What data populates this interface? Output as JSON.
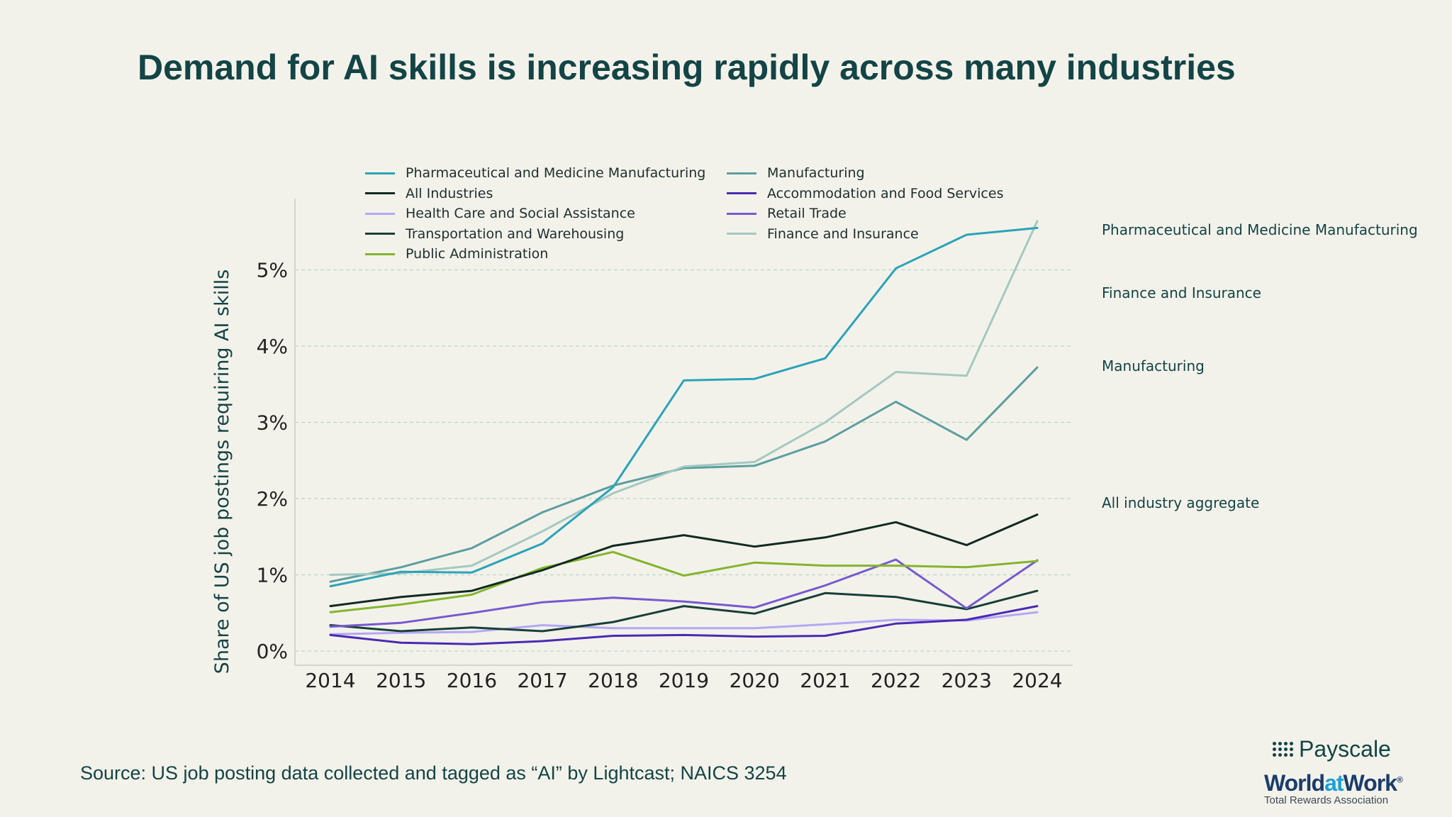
{
  "title": "Demand for AI skills is increasing rapidly across many industries",
  "source": "Source: US job posting data collected and tagged as “AI” by Lightcast; NAICS 3254",
  "logos": {
    "payscale": "Payscale",
    "worldatwork_1": "World",
    "worldatwork_2": "at",
    "worldatwork_3": "Work",
    "worldatwork_mark": "®",
    "worldatwork_tagline": "Total Rewards Association"
  },
  "right_labels": {
    "pharma": "Pharmaceutical and Medicine Manufacturing",
    "finance": "Finance and Insurance",
    "manufacturing": "Manufacturing",
    "aggregate": "All industry aggregate"
  },
  "chart_data": {
    "type": "line",
    "ylabel": "Share of US job postings requiring AI skills",
    "xlabel": "",
    "x": [
      2014,
      2015,
      2016,
      2017,
      2018,
      2019,
      2020,
      2021,
      2022,
      2023,
      2024
    ],
    "ylim": [
      -0.18,
      5.9
    ],
    "yticks": [
      0,
      1,
      2,
      3,
      4,
      5
    ],
    "ytick_labels": [
      "0%",
      "1%",
      "2%",
      "3%",
      "4%",
      "5%"
    ],
    "grid": true,
    "legend_position": "top",
    "series": [
      {
        "name": "Pharmaceutical and Medicine Manufacturing",
        "color": "#2aa3b9",
        "values": [
          0.85,
          1.04,
          1.03,
          1.41,
          2.15,
          3.55,
          3.57,
          3.84,
          5.02,
          5.46,
          5.55
        ]
      },
      {
        "name": "All Industries",
        "color": "#0f2a22",
        "values": [
          0.59,
          0.71,
          0.79,
          1.06,
          1.38,
          1.52,
          1.37,
          1.49,
          1.69,
          1.39,
          1.79
        ]
      },
      {
        "name": "Health Care and Social Assistance",
        "color": "#b3a8f4",
        "values": [
          0.22,
          0.24,
          0.25,
          0.34,
          0.3,
          0.3,
          0.3,
          0.35,
          0.41,
          0.4,
          0.51
        ]
      },
      {
        "name": "Transportation and Warehousing",
        "color": "#173f3a",
        "values": [
          0.34,
          0.26,
          0.31,
          0.26,
          0.38,
          0.59,
          0.49,
          0.76,
          0.71,
          0.55,
          0.79
        ]
      },
      {
        "name": "Public Administration",
        "color": "#82b52c",
        "values": [
          0.51,
          0.61,
          0.74,
          1.09,
          1.3,
          0.99,
          1.16,
          1.12,
          1.12,
          1.1,
          1.18
        ]
      },
      {
        "name": "Manufacturing",
        "color": "#5c9ea0",
        "values": [
          0.91,
          1.1,
          1.35,
          1.82,
          2.17,
          2.4,
          2.43,
          2.75,
          3.27,
          2.77,
          3.72
        ]
      },
      {
        "name": "Accommodation and Food Services",
        "color": "#4a2ab3",
        "values": [
          0.21,
          0.11,
          0.09,
          0.13,
          0.2,
          0.21,
          0.19,
          0.2,
          0.36,
          0.41,
          0.59
        ]
      },
      {
        "name": "Retail Trade",
        "color": "#7659cf",
        "values": [
          0.32,
          0.37,
          0.5,
          0.64,
          0.7,
          0.65,
          0.57,
          0.86,
          1.2,
          0.56,
          1.19
        ]
      },
      {
        "name": "Finance and Insurance",
        "color": "#a3c9c1",
        "values": [
          1.0,
          1.02,
          1.12,
          1.57,
          2.07,
          2.42,
          2.48,
          3.0,
          3.66,
          3.61,
          5.64
        ]
      }
    ]
  }
}
